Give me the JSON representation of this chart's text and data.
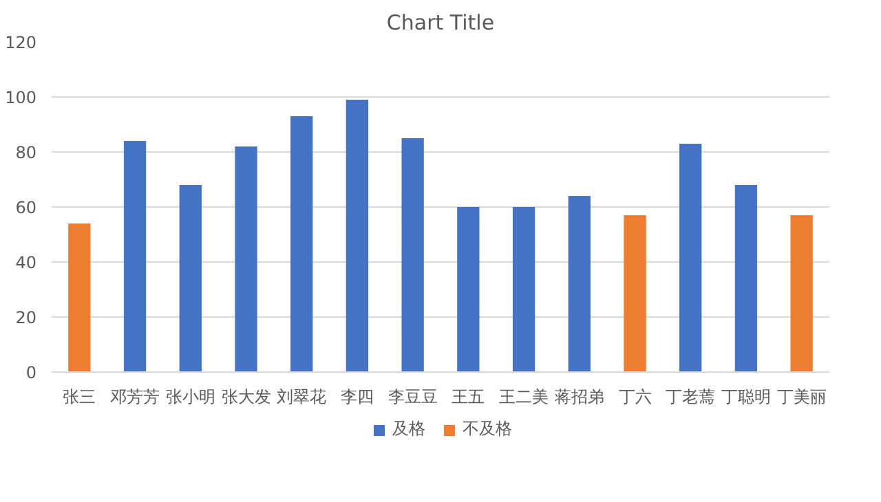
{
  "chart_data": {
    "type": "bar",
    "title": "Chart Title",
    "stacked": true,
    "categories": [
      "张三",
      "邓芳芳",
      "张小明",
      "张大发",
      "刘翠花",
      "李四",
      "李豆豆",
      "王五",
      "王二美",
      "蒋招弟",
      "丁六",
      "丁老蔫",
      "丁聪明",
      "丁美丽"
    ],
    "series": [
      {
        "name": "及格",
        "color": "#4472c4",
        "values": [
          null,
          84,
          68,
          82,
          93,
          99,
          85,
          60,
          60,
          64,
          null,
          83,
          68,
          null
        ]
      },
      {
        "name": "不及格",
        "color": "#ed7d31",
        "values": [
          54,
          null,
          null,
          null,
          null,
          null,
          null,
          null,
          null,
          null,
          57,
          null,
          null,
          57
        ]
      }
    ],
    "ylim": [
      0,
      120
    ],
    "yticks": [
      0,
      20,
      40,
      60,
      80,
      100,
      120
    ],
    "grid": "y",
    "legend": "bottom"
  }
}
